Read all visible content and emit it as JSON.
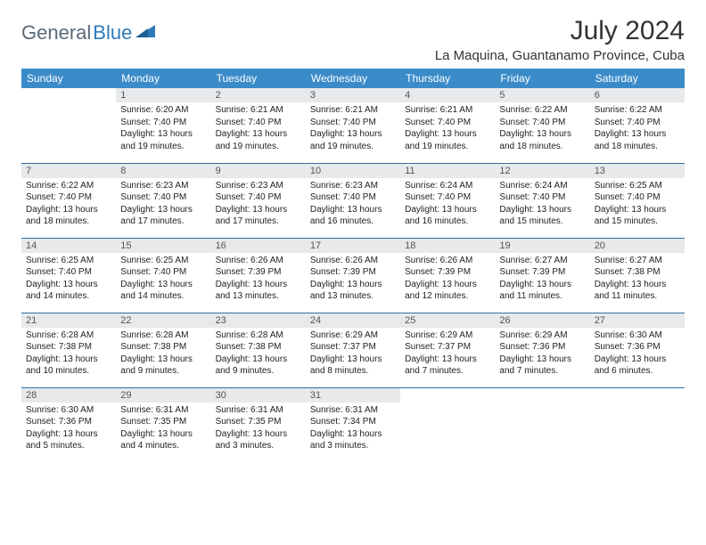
{
  "logo": {
    "text1": "General",
    "text2": "Blue"
  },
  "title": "July 2024",
  "location": "La Maquina, Guantanamo Province, Cuba",
  "colors": {
    "header_bg": "#3b8bc9",
    "header_text": "#ffffff",
    "daynum_bg": "#e7e9ea",
    "row_border": "#2f6fa8",
    "logo_gray": "#5a6b78",
    "logo_blue": "#2f7ab8"
  },
  "day_headers": [
    "Sunday",
    "Monday",
    "Tuesday",
    "Wednesday",
    "Thursday",
    "Friday",
    "Saturday"
  ],
  "weeks": [
    [
      {
        "n": "",
        "sr": "",
        "ss": "",
        "dl": "",
        "empty": true
      },
      {
        "n": "1",
        "sr": "6:20 AM",
        "ss": "7:40 PM",
        "dl": "13 hours and 19 minutes."
      },
      {
        "n": "2",
        "sr": "6:21 AM",
        "ss": "7:40 PM",
        "dl": "13 hours and 19 minutes."
      },
      {
        "n": "3",
        "sr": "6:21 AM",
        "ss": "7:40 PM",
        "dl": "13 hours and 19 minutes."
      },
      {
        "n": "4",
        "sr": "6:21 AM",
        "ss": "7:40 PM",
        "dl": "13 hours and 19 minutes."
      },
      {
        "n": "5",
        "sr": "6:22 AM",
        "ss": "7:40 PM",
        "dl": "13 hours and 18 minutes."
      },
      {
        "n": "6",
        "sr": "6:22 AM",
        "ss": "7:40 PM",
        "dl": "13 hours and 18 minutes."
      }
    ],
    [
      {
        "n": "7",
        "sr": "6:22 AM",
        "ss": "7:40 PM",
        "dl": "13 hours and 18 minutes."
      },
      {
        "n": "8",
        "sr": "6:23 AM",
        "ss": "7:40 PM",
        "dl": "13 hours and 17 minutes."
      },
      {
        "n": "9",
        "sr": "6:23 AM",
        "ss": "7:40 PM",
        "dl": "13 hours and 17 minutes."
      },
      {
        "n": "10",
        "sr": "6:23 AM",
        "ss": "7:40 PM",
        "dl": "13 hours and 16 minutes."
      },
      {
        "n": "11",
        "sr": "6:24 AM",
        "ss": "7:40 PM",
        "dl": "13 hours and 16 minutes."
      },
      {
        "n": "12",
        "sr": "6:24 AM",
        "ss": "7:40 PM",
        "dl": "13 hours and 15 minutes."
      },
      {
        "n": "13",
        "sr": "6:25 AM",
        "ss": "7:40 PM",
        "dl": "13 hours and 15 minutes."
      }
    ],
    [
      {
        "n": "14",
        "sr": "6:25 AM",
        "ss": "7:40 PM",
        "dl": "13 hours and 14 minutes."
      },
      {
        "n": "15",
        "sr": "6:25 AM",
        "ss": "7:40 PM",
        "dl": "13 hours and 14 minutes."
      },
      {
        "n": "16",
        "sr": "6:26 AM",
        "ss": "7:39 PM",
        "dl": "13 hours and 13 minutes."
      },
      {
        "n": "17",
        "sr": "6:26 AM",
        "ss": "7:39 PM",
        "dl": "13 hours and 13 minutes."
      },
      {
        "n": "18",
        "sr": "6:26 AM",
        "ss": "7:39 PM",
        "dl": "13 hours and 12 minutes."
      },
      {
        "n": "19",
        "sr": "6:27 AM",
        "ss": "7:39 PM",
        "dl": "13 hours and 11 minutes."
      },
      {
        "n": "20",
        "sr": "6:27 AM",
        "ss": "7:38 PM",
        "dl": "13 hours and 11 minutes."
      }
    ],
    [
      {
        "n": "21",
        "sr": "6:28 AM",
        "ss": "7:38 PM",
        "dl": "13 hours and 10 minutes."
      },
      {
        "n": "22",
        "sr": "6:28 AM",
        "ss": "7:38 PM",
        "dl": "13 hours and 9 minutes."
      },
      {
        "n": "23",
        "sr": "6:28 AM",
        "ss": "7:38 PM",
        "dl": "13 hours and 9 minutes."
      },
      {
        "n": "24",
        "sr": "6:29 AM",
        "ss": "7:37 PM",
        "dl": "13 hours and 8 minutes."
      },
      {
        "n": "25",
        "sr": "6:29 AM",
        "ss": "7:37 PM",
        "dl": "13 hours and 7 minutes."
      },
      {
        "n": "26",
        "sr": "6:29 AM",
        "ss": "7:36 PM",
        "dl": "13 hours and 7 minutes."
      },
      {
        "n": "27",
        "sr": "6:30 AM",
        "ss": "7:36 PM",
        "dl": "13 hours and 6 minutes."
      }
    ],
    [
      {
        "n": "28",
        "sr": "6:30 AM",
        "ss": "7:36 PM",
        "dl": "13 hours and 5 minutes."
      },
      {
        "n": "29",
        "sr": "6:31 AM",
        "ss": "7:35 PM",
        "dl": "13 hours and 4 minutes."
      },
      {
        "n": "30",
        "sr": "6:31 AM",
        "ss": "7:35 PM",
        "dl": "13 hours and 3 minutes."
      },
      {
        "n": "31",
        "sr": "6:31 AM",
        "ss": "7:34 PM",
        "dl": "13 hours and 3 minutes."
      },
      {
        "n": "",
        "sr": "",
        "ss": "",
        "dl": "",
        "empty": true
      },
      {
        "n": "",
        "sr": "",
        "ss": "",
        "dl": "",
        "empty": true
      },
      {
        "n": "",
        "sr": "",
        "ss": "",
        "dl": "",
        "empty": true
      }
    ]
  ],
  "labels": {
    "sunrise": "Sunrise:",
    "sunset": "Sunset:",
    "daylight": "Daylight:"
  }
}
